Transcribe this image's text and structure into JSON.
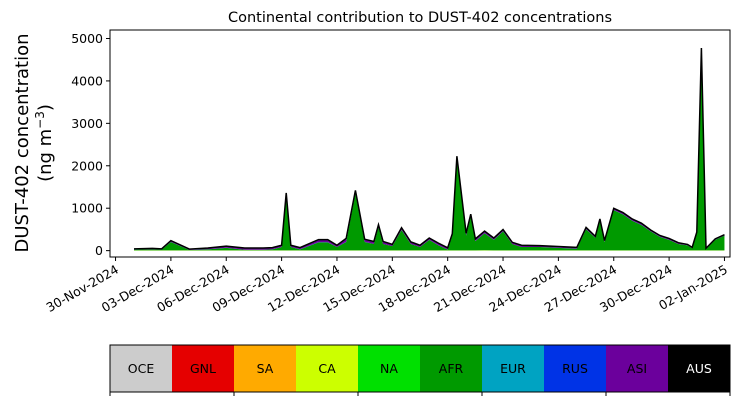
{
  "chart_data": {
    "type": "area",
    "title": "Continental contribution to DUST-402 concentrations",
    "ylabel_line1": "DUST-402 concentration",
    "ylabel_line2": "(ng m",
    "ylabel_sup": "−3",
    "ylabel_close": ")",
    "ylim": [
      -150,
      5200
    ],
    "yticks": [
      0,
      1000,
      2000,
      3000,
      4000,
      5000
    ],
    "xlim_days": [
      -0.3,
      33.3
    ],
    "xticks": [
      "30-Nov-2024",
      "03-Dec-2024",
      "06-Dec-2024",
      "09-Dec-2024",
      "12-Dec-2024",
      "15-Dec-2024",
      "18-Dec-2024",
      "21-Dec-2024",
      "24-Dec-2024",
      "27-Dec-2024",
      "30-Dec-2024",
      "02-Jan-2025"
    ],
    "x_dates": [
      "2024-12-01",
      "2024-12-02",
      "2024-12-02 12:00",
      "2024-12-03",
      "2024-12-04",
      "2024-12-05",
      "2024-12-06",
      "2024-12-07",
      "2024-12-08",
      "2024-12-08 12:00",
      "2024-12-09",
      "2024-12-09 06:00",
      "2024-12-09 12:00",
      "2024-12-10",
      "2024-12-11",
      "2024-12-11 12:00",
      "2024-12-12",
      "2024-12-12 12:00",
      "2024-12-13",
      "2024-12-13 12:00",
      "2024-12-14",
      "2024-12-14 06:00",
      "2024-12-14 12:00",
      "2024-12-15",
      "2024-12-15 12:00",
      "2024-12-16",
      "2024-12-16 12:00",
      "2024-12-17",
      "2024-12-17 12:00",
      "2024-12-18",
      "2024-12-18 06:00",
      "2024-12-18 12:00",
      "2024-12-19",
      "2024-12-19 06:00",
      "2024-12-19 12:00",
      "2024-12-20",
      "2024-12-20 12:00",
      "2024-12-21",
      "2024-12-21 12:00",
      "2024-12-22",
      "2024-12-23",
      "2024-12-24",
      "2024-12-25",
      "2024-12-25 12:00",
      "2024-12-26",
      "2024-12-26 06:00",
      "2024-12-26 12:00",
      "2024-12-27",
      "2024-12-27 12:00",
      "2024-12-28",
      "2024-12-28 12:00",
      "2024-12-29",
      "2024-12-29 12:00",
      "2024-12-30",
      "2024-12-30 12:00",
      "2024-12-31",
      "2024-12-31 06:00",
      "2024-12-31 12:00",
      "2024-12-31 18:00",
      "2025-01-01",
      "2025-01-01 12:00",
      "2025-01-02"
    ],
    "stack_order": [
      "OCE",
      "GNL",
      "SA",
      "CA",
      "NA",
      "AFR",
      "EUR",
      "RUS",
      "ASI",
      "AUS"
    ],
    "series": [
      {
        "name": "AFR",
        "values": [
          20,
          25,
          20,
          200,
          10,
          25,
          60,
          15,
          15,
          25,
          80,
          1300,
          80,
          25,
          190,
          190,
          80,
          200,
          1350,
          200,
          150,
          550,
          150,
          100,
          480,
          150,
          80,
          250,
          120,
          20,
          350,
          2150,
          350,
          800,
          220,
          400,
          250,
          450,
          150,
          80,
          80,
          60,
          40,
          500,
          300,
          700,
          200,
          950,
          850,
          700,
          600,
          450,
          320,
          250,
          150,
          120,
          50,
          400,
          4700,
          30,
          250,
          350
        ]
      },
      {
        "name": "CA",
        "values": [
          5,
          5,
          5,
          5,
          5,
          5,
          5,
          5,
          5,
          5,
          5,
          5,
          5,
          5,
          5,
          5,
          5,
          5,
          5,
          5,
          5,
          5,
          5,
          5,
          5,
          5,
          5,
          5,
          5,
          5,
          5,
          5,
          5,
          5,
          5,
          10,
          5,
          5,
          5,
          5,
          5,
          5,
          5,
          5,
          5,
          5,
          5,
          5,
          5,
          5,
          5,
          5,
          5,
          5,
          5,
          5,
          5,
          5,
          5,
          5,
          5,
          5
        ]
      },
      {
        "name": "ASI",
        "values": [
          15,
          20,
          15,
          30,
          20,
          30,
          40,
          40,
          40,
          40,
          40,
          50,
          40,
          40,
          60,
          60,
          40,
          80,
          60,
          60,
          60,
          50,
          60,
          40,
          50,
          50,
          40,
          40,
          50,
          40,
          40,
          60,
          50,
          50,
          50,
          50,
          40,
          40,
          40,
          40,
          30,
          30,
          30,
          40,
          30,
          40,
          30,
          40,
          40,
          40,
          40,
          30,
          30,
          30,
          30,
          20,
          20,
          30,
          50,
          20,
          20,
          20
        ]
      },
      {
        "name": "RUS",
        "values": [
          2,
          2,
          2,
          2,
          2,
          2,
          2,
          2,
          2,
          2,
          2,
          5,
          2,
          2,
          5,
          5,
          2,
          5,
          5,
          5,
          2,
          5,
          2,
          2,
          5,
          2,
          2,
          2,
          2,
          2,
          2,
          10,
          5,
          5,
          2,
          2,
          2,
          2,
          2,
          2,
          2,
          2,
          2,
          2,
          2,
          2,
          2,
          2,
          2,
          2,
          2,
          2,
          2,
          2,
          2,
          2,
          2,
          2,
          20,
          2,
          2,
          2
        ]
      }
    ],
    "colors": {
      "OCE": "#cccccc",
      "GNL": "#e50000",
      "SA": "#ffaa00",
      "CA": "#ccff00",
      "NA": "#00e000",
      "AFR": "#009a00",
      "EUR": "#00a3c2",
      "RUS": "#0033e6",
      "ASI": "#6b009c",
      "AUS": "#000000"
    }
  },
  "legend": [
    {
      "label": "OCE",
      "color": "#cccccc",
      "text_color": "#000000"
    },
    {
      "label": "GNL",
      "color": "#e50000",
      "text_color": "#000000"
    },
    {
      "label": "SA",
      "color": "#ffaa00",
      "text_color": "#000000"
    },
    {
      "label": "CA",
      "color": "#ccff00",
      "text_color": "#000000"
    },
    {
      "label": "NA",
      "color": "#00e000",
      "text_color": "#000000"
    },
    {
      "label": "AFR",
      "color": "#009a00",
      "text_color": "#000000"
    },
    {
      "label": "EUR",
      "color": "#00a3c2",
      "text_color": "#000000"
    },
    {
      "label": "RUS",
      "color": "#0033e6",
      "text_color": "#000000"
    },
    {
      "label": "ASI",
      "color": "#6b009c",
      "text_color": "#000000"
    },
    {
      "label": "AUS",
      "color": "#000000",
      "text_color": "#ffffff"
    }
  ]
}
